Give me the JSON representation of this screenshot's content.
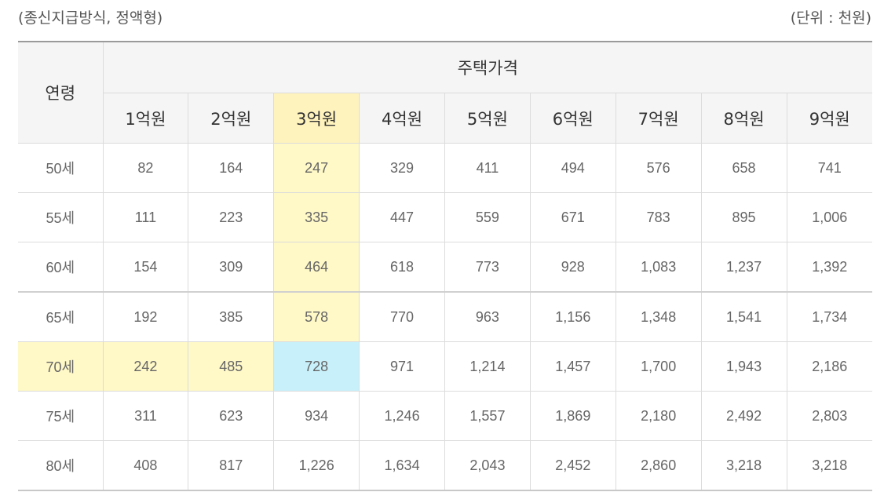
{
  "caption": {
    "left": "(종신지급방식, 정액형)",
    "right": "(단위 : 천원)"
  },
  "headers": {
    "age": "연령",
    "price_group": "주택가격",
    "prices": [
      "1억원",
      "2억원",
      "3억원",
      "4억원",
      "5억원",
      "6억원",
      "7억원",
      "8억원",
      "9억원"
    ]
  },
  "rows": [
    {
      "age": "50세",
      "values": [
        "82",
        "164",
        "247",
        "329",
        "411",
        "494",
        "576",
        "658",
        "741"
      ]
    },
    {
      "age": "55세",
      "values": [
        "111",
        "223",
        "335",
        "447",
        "559",
        "671",
        "783",
        "895",
        "1,006"
      ]
    },
    {
      "age": "60세",
      "values": [
        "154",
        "309",
        "464",
        "618",
        "773",
        "928",
        "1,083",
        "1,237",
        "1,392"
      ]
    },
    {
      "age": "65세",
      "values": [
        "192",
        "385",
        "578",
        "770",
        "963",
        "1,156",
        "1,348",
        "1,541",
        "1,734"
      ]
    },
    {
      "age": "70세",
      "values": [
        "242",
        "485",
        "728",
        "971",
        "1,214",
        "1,457",
        "1,700",
        "1,943",
        "2,186"
      ]
    },
    {
      "age": "75세",
      "values": [
        "311",
        "623",
        "934",
        "1,246",
        "1,557",
        "1,869",
        "2,180",
        "2,492",
        "2,803"
      ]
    },
    {
      "age": "80세",
      "values": [
        "408",
        "817",
        "1,226",
        "1,634",
        "2,043",
        "2,452",
        "2,860",
        "3,218",
        "3,218"
      ]
    }
  ],
  "highlight": {
    "column": "3억원",
    "row": "70세",
    "colors": {
      "yellow": "#fff8c7",
      "blue": "#c8f0fa"
    }
  }
}
